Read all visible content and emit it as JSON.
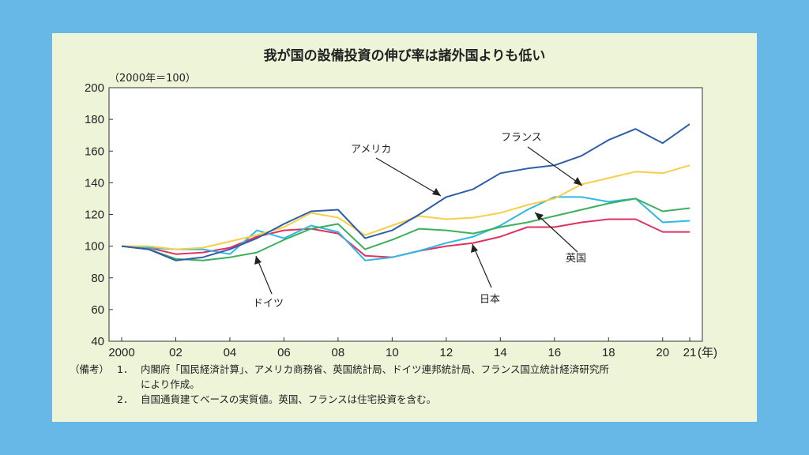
{
  "colors": {
    "frame": "#67b8e6",
    "panel": "#eef4d8",
    "america": "#2e5ea8",
    "france": "#f7cf47",
    "germany": "#3cb05a",
    "uk": "#2fb8e6",
    "japan": "#e0325f"
  },
  "chart_data": {
    "type": "line",
    "title": "我が国の設備投資の伸び率は諸外国よりも低い",
    "unit_label": "（2000年＝100）",
    "x": [
      2000,
      2001,
      2002,
      2003,
      2004,
      2005,
      2006,
      2007,
      2008,
      2009,
      2010,
      2011,
      2012,
      2013,
      2014,
      2015,
      2016,
      2017,
      2018,
      2019,
      2020,
      2021
    ],
    "x_tick_labels": [
      "2000",
      "02",
      "04",
      "06",
      "08",
      "10",
      "12",
      "14",
      "16",
      "18",
      "20",
      "21"
    ],
    "x_unit": "(年)",
    "ylim": [
      40,
      200
    ],
    "y_ticks": [
      40,
      60,
      80,
      100,
      120,
      140,
      160,
      180,
      200
    ],
    "grid": false,
    "series": [
      {
        "name": "アメリカ",
        "color": "#2e5ea8",
        "values": [
          100,
          98,
          91,
          93,
          98,
          105,
          114,
          122,
          123,
          105,
          110,
          120,
          131,
          136,
          146,
          149,
          151,
          157,
          167,
          174,
          165,
          177
        ]
      },
      {
        "name": "フランス",
        "color": "#f7cf47",
        "values": [
          100,
          100,
          98,
          99,
          103,
          107,
          112,
          121,
          118,
          107,
          113,
          119,
          117,
          118,
          121,
          126,
          130,
          139,
          143,
          147,
          146,
          151
        ]
      },
      {
        "name": "ドイツ",
        "color": "#3cb05a",
        "values": [
          100,
          98,
          92,
          91,
          93,
          96,
          104,
          111,
          114,
          98,
          104,
          111,
          110,
          108,
          112,
          115,
          119,
          123,
          127,
          130,
          122,
          124
        ]
      },
      {
        "name": "英国",
        "color": "#2fb8e6",
        "values": [
          100,
          99,
          98,
          98,
          95,
          110,
          105,
          113,
          109,
          91,
          93,
          97,
          102,
          106,
          113,
          123,
          131,
          131,
          128,
          130,
          115,
          116
        ]
      },
      {
        "name": "日本",
        "color": "#e0325f",
        "values": [
          100,
          99,
          95,
          96,
          99,
          106,
          110,
          111,
          108,
          94,
          93,
          97,
          100,
          102,
          106,
          112,
          112,
          115,
          117,
          117,
          109,
          109
        ]
      }
    ]
  },
  "notes": {
    "head": "（備考）",
    "items": [
      {
        "num": "1．",
        "text": "内閣府「国民経済計算」、アメリカ商務省、英国統計局、ドイツ連邦統計局、フランス国立統計経済研究所",
        "cont": "により作成。"
      },
      {
        "num": "2．",
        "text": "自国通貨建てベースの実質値。英国、フランスは住宅投資を含む。"
      }
    ]
  }
}
